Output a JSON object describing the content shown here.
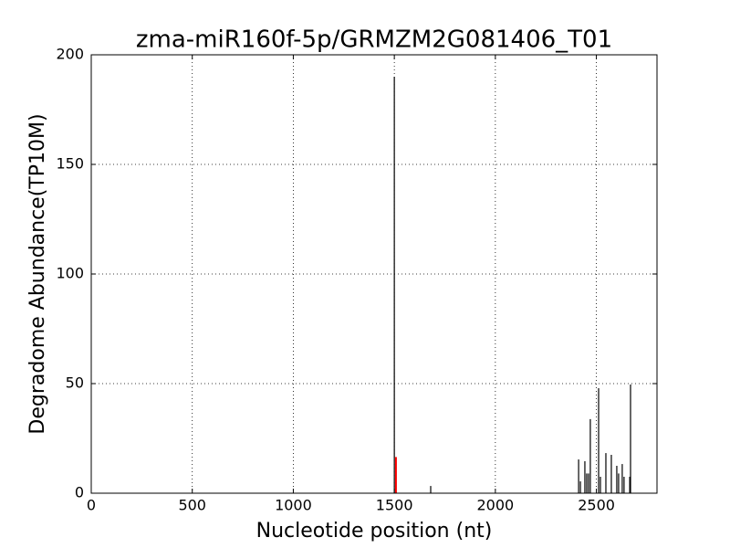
{
  "chart_data": {
    "type": "stem",
    "title": "zma-miR160f-5p/GRMZM2G081406_T01",
    "xlabel": "Nucleotide position (nt)",
    "ylabel": "Degradome Abundance(TP10M)",
    "series": [
      {
        "color": "#000000",
        "x": [
          1500,
          1680,
          2412,
          2421,
          2443,
          2452,
          2461,
          2470,
          2511,
          2520,
          2547,
          2574,
          2601,
          2610,
          2628,
          2637,
          2665,
          2669
        ],
        "values": [
          190,
          3.3,
          15.4,
          5.4,
          14.6,
          9,
          9,
          33.8,
          47.9,
          7.5,
          18.3,
          17.5,
          12.5,
          9,
          13.3,
          7.5,
          7.5,
          49.6
        ]
      },
      {
        "color": "#ff0000",
        "x": [
          1508
        ],
        "values": [
          16.5
        ]
      }
    ],
    "xlim": [
      0,
      2800
    ],
    "xticks": [
      0,
      500,
      1000,
      1500,
      2000,
      2500
    ],
    "ylim": [
      0,
      200
    ],
    "yticks": [
      0,
      50,
      100,
      150,
      200
    ],
    "grid": true
  }
}
